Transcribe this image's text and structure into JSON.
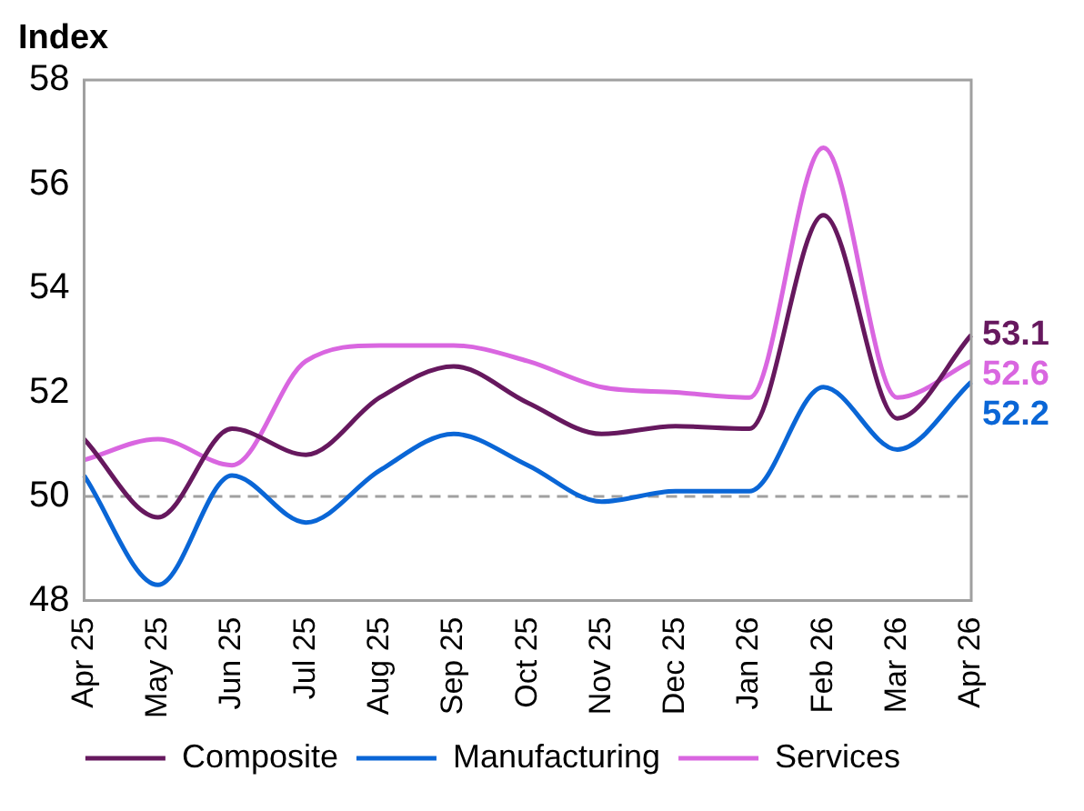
{
  "chart_data": {
    "type": "line",
    "ylabel": "Index",
    "categories": [
      "Apr 25",
      "May 25",
      "Jun 25",
      "Jul 25",
      "Aug 25",
      "Sep 25",
      "Oct 25",
      "Nov 25",
      "Dec 25",
      "Jan 26",
      "Feb 26",
      "Mar 26",
      "Apr 26"
    ],
    "series": [
      {
        "name": "Composite",
        "color": "#66185e",
        "values": [
          51.1,
          49.6,
          51.3,
          50.8,
          51.9,
          52.5,
          51.8,
          51.2,
          51.35,
          51.3,
          55.4,
          51.5,
          53.1
        ],
        "value_labels": [
          null,
          null,
          null,
          null,
          null,
          null,
          null,
          null,
          null,
          null,
          null,
          null,
          "53.1"
        ]
      },
      {
        "name": "Manufacturing",
        "color": "#0a66d6",
        "values": [
          50.4,
          48.3,
          50.4,
          49.5,
          50.5,
          51.2,
          50.6,
          49.9,
          50.1,
          50.1,
          52.1,
          50.9,
          52.2
        ],
        "value_labels": [
          null,
          null,
          null,
          null,
          null,
          null,
          null,
          null,
          null,
          null,
          null,
          null,
          "52.2"
        ]
      },
      {
        "name": "Services",
        "color": "#d966e0",
        "values": [
          50.7,
          51.1,
          50.6,
          52.6,
          52.9,
          52.9,
          52.6,
          52.1,
          52.0,
          51.9,
          56.7,
          51.9,
          52.6
        ],
        "value_labels": [
          null,
          null,
          null,
          null,
          null,
          null,
          null,
          null,
          null,
          null,
          null,
          null,
          "52.6"
        ]
      }
    ],
    "ylim": [
      48,
      58
    ],
    "yticks": [
      48,
      50,
      52,
      54,
      56,
      58
    ],
    "grid": false,
    "legend": "bottom",
    "marker": "none",
    "line_style": "solid",
    "ref_lines": [
      {
        "axis": "y",
        "value": 50,
        "color": "#a0a0a0",
        "line_style": "dashed"
      }
    ]
  }
}
